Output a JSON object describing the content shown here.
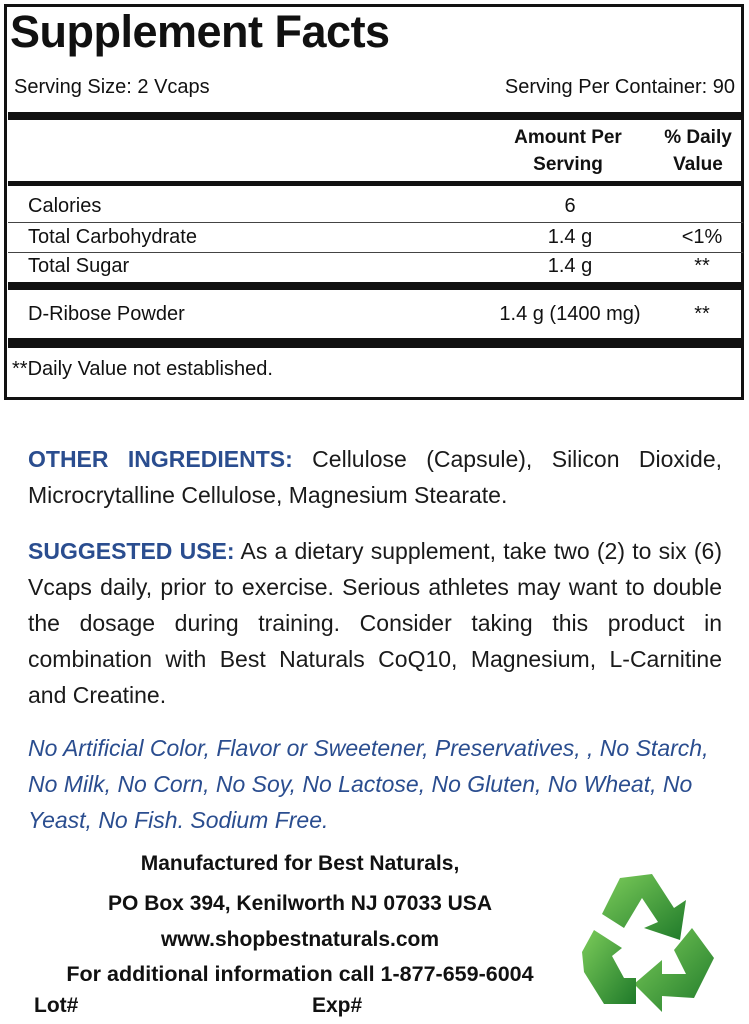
{
  "facts": {
    "title": "Supplement Facts",
    "serving_size": "Serving Size: 2 Vcaps",
    "servings_per_container": "Serving Per Container: 90",
    "header_amount_1": "Amount Per",
    "header_amount_2": "Serving",
    "header_dv_1": "% Daily",
    "header_dv_2": "Value",
    "rows": [
      {
        "name": "Calories",
        "amount": "6",
        "dv": ""
      },
      {
        "name": "Total Carbohydrate",
        "amount": "1.4 g",
        "dv": "<1%"
      },
      {
        "name": "Total Sugar",
        "amount": "1.4 g",
        "dv": "**"
      },
      {
        "name": "D-Ribose Powder",
        "amount": "1.4 g (1400 mg)",
        "dv": "**"
      }
    ],
    "footnote": "**Daily Value not established."
  },
  "other_ingredients": {
    "label": "OTHER INGREDIENTS:",
    "text": " Cellulose (Capsule), Silicon Dioxide, Microcrytalline Cellulose, Magnesium Stearate."
  },
  "suggested_use": {
    "label": "SUGGESTED USE:",
    "text": " As a dietary supplement, take two (2) to six (6) Vcaps daily, prior to exercise. Serious athletes may want to double the dosage during training. Consider taking this product in combination with Best Naturals CoQ10, Magnesium, L-Carnitine and Creatine."
  },
  "free_from": "No Artificial Color, Flavor or Sweetener, Preservatives, , No Starch, No Milk, No Corn, No Soy, No Lactose, No Gluten, No Wheat, No Yeast, No Fish. Sodium Free.",
  "footer": {
    "manufactured": "Manufactured for Best Naturals,",
    "address": "PO Box 394, Kenilworth NJ 07033 USA",
    "website": "www.shopbestnaturals.com",
    "phone": "For additional information call 1-877-659-6004",
    "lot": "Lot#",
    "exp": "Exp#"
  },
  "colors": {
    "accent_blue": "#2a4d8f",
    "recycle_green": "#3a9a3a"
  },
  "icons": [
    "recycle-icon"
  ]
}
